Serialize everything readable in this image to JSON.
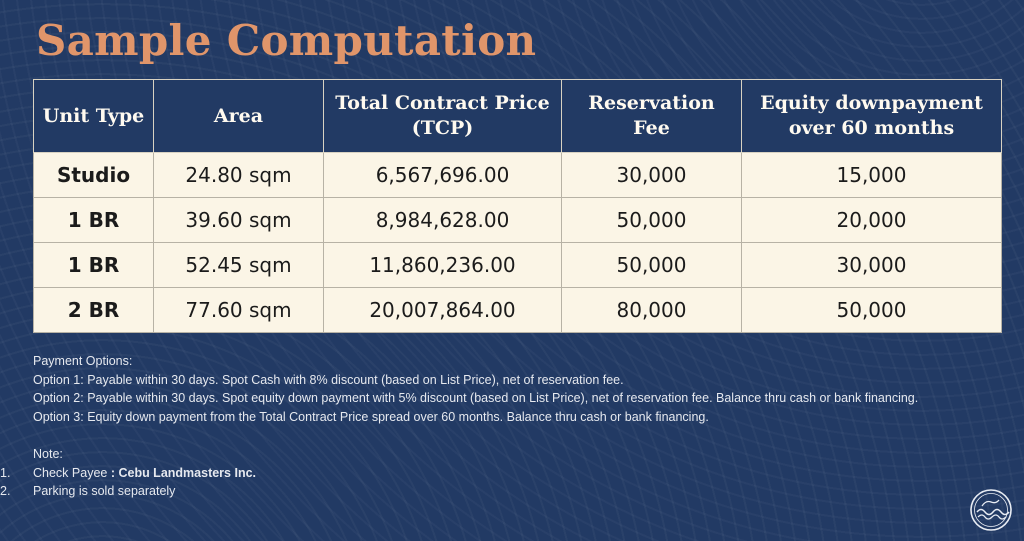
{
  "title": "Sample Computation",
  "table": {
    "headers": [
      "Unit Type",
      "Area",
      "Total Contract Price (TCP)",
      "Reservation Fee",
      "Equity downpayment over 60 months"
    ],
    "rows": [
      [
        "Studio",
        "24.80 sqm",
        "6,567,696.00",
        "30,000",
        "15,000"
      ],
      [
        "1 BR",
        "39.60 sqm",
        "8,984,628.00",
        "50,000",
        "20,000"
      ],
      [
        "1 BR",
        "52.45 sqm",
        "11,860,236.00",
        "50,000",
        "30,000"
      ],
      [
        "2 BR",
        "77.60 sqm",
        "20,007,864.00",
        "80,000",
        "50,000"
      ]
    ]
  },
  "payment_options": {
    "heading": "Payment Options:",
    "options": [
      "Option 1: Payable within 30 days. Spot Cash with 8% discount (based on List Price), net of reservation fee.",
      "Option 2: Payable within 30 days. Spot equity down payment with 5% discount (based on List Price), net of reservation fee. Balance thru cash or bank financing.",
      "Option 3: Equity down payment  from the Total Contract Price spread over 60 months. Balance thru cash or bank financing."
    ]
  },
  "note": {
    "heading": "Note:",
    "items": [
      {
        "num": "1.",
        "text": "Check Payee ",
        "bold": ": Cebu Landmasters Inc."
      },
      {
        "num": "2.",
        "text": "Parking is sold separately",
        "bold": ""
      }
    ]
  },
  "colors": {
    "background": "#223a64",
    "title": "#e0956a",
    "table_body": "#fbf5e6"
  },
  "icons": {
    "logo": "wave-seal-icon"
  }
}
